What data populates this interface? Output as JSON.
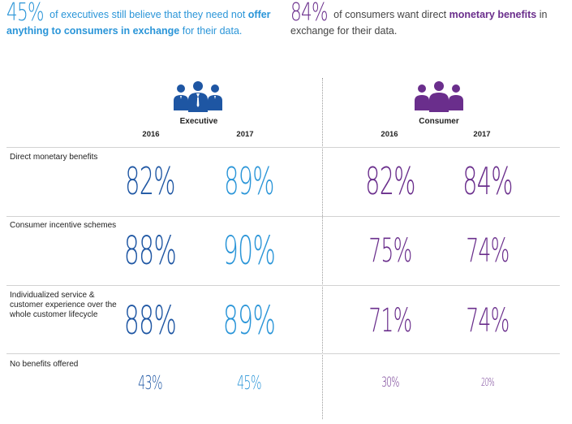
{
  "header": {
    "left": {
      "big": "45%",
      "text_before": "of executives still believe that they need not ",
      "bold": "offer anything to consumers in exchange",
      "text_after": " for their data."
    },
    "right": {
      "big": "84%",
      "text_before": "of consumers want direct ",
      "bold": "monetary benefits",
      "text_after": " in exchange for their data."
    }
  },
  "groups": [
    {
      "label": "Executive",
      "icon": "people-group-icon",
      "color": "#1e56a3",
      "years": [
        "2016",
        "2017"
      ]
    },
    {
      "label": "Consumer",
      "icon": "people-group-icon",
      "color": "#6a2e8c",
      "years": [
        "2016",
        "2017"
      ]
    }
  ],
  "colors": {
    "executive_2016": "#1e56a3",
    "executive_2017": "#2a95d8",
    "consumer": "#6a2e8c"
  },
  "chart_data": {
    "type": "table",
    "columns": [
      "Executive 2016",
      "Executive 2017",
      "Consumer 2016",
      "Consumer 2017"
    ],
    "rows": [
      {
        "label": "Direct monetary benefits",
        "display": [
          "82%",
          "89%",
          "82%",
          "84%"
        ],
        "values": [
          82,
          89,
          82,
          84
        ]
      },
      {
        "label": "Consumer incentive schemes",
        "display": [
          "88%",
          "90%",
          "75%",
          "74%"
        ],
        "values": [
          88,
          90,
          75,
          74
        ]
      },
      {
        "label": "Individualized service & customer experience over the whole customer lifecycle",
        "display": [
          "88%",
          "89%",
          "71%",
          "74%"
        ],
        "values": [
          88,
          89,
          71,
          74
        ]
      },
      {
        "label": "No benefits offered",
        "display": [
          "43%",
          "45%",
          "30%",
          "20%"
        ],
        "values": [
          43,
          45,
          30,
          20
        ]
      }
    ]
  }
}
